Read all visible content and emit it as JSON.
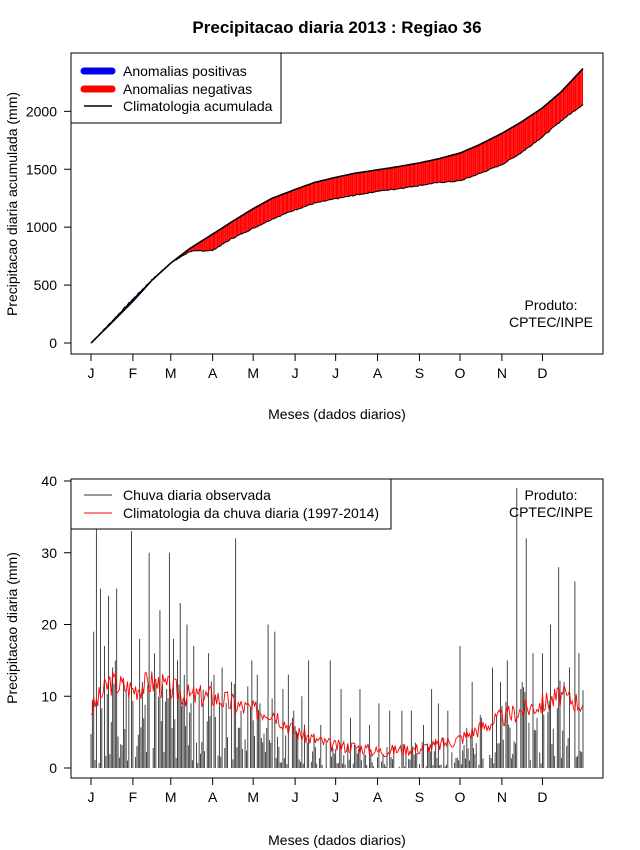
{
  "title": "Precipitacao diaria 2013 : Regiao 36",
  "credit_line1": "Produto:",
  "credit_line2": "CPTEC/INPE",
  "month_ticks": [
    "J",
    "F",
    "M",
    "A",
    "M",
    "J",
    "J",
    "A",
    "S",
    "O",
    "N",
    "D"
  ],
  "chart_data": [
    {
      "type": "area",
      "title": "Precipitacao diaria 2013 : Regiao 36",
      "xlabel": "Meses (dados diarios)",
      "ylabel": "Precipitacao diaria acumulada (mm)",
      "xlim": [
        1,
        365
      ],
      "ylim": [
        0,
        2400
      ],
      "yticks": [
        0,
        500,
        1000,
        1500,
        2000
      ],
      "legend_position": "top-left",
      "legend": [
        "Anomalias positivas",
        "Anomalias negativas",
        "Climatologia acumulada"
      ],
      "colors": {
        "positive": "#0000ee",
        "negative": "#ff0000",
        "climatology": "#000000"
      },
      "climatology_cumulative": {
        "day": [
          1,
          15,
          32,
          46,
          60,
          74,
          91,
          105,
          121,
          135,
          152,
          166,
          182,
          196,
          213,
          227,
          244,
          258,
          274,
          288,
          305,
          319,
          335,
          349,
          365
        ],
        "mm": [
          0,
          160,
          360,
          540,
          690,
          815,
          940,
          1045,
          1160,
          1250,
          1325,
          1385,
          1430,
          1465,
          1495,
          1520,
          1555,
          1590,
          1640,
          1710,
          1810,
          1905,
          2030,
          2170,
          2370
        ]
      },
      "observed_cumulative": {
        "day": [
          1,
          15,
          32,
          46,
          60,
          74,
          91,
          105,
          121,
          135,
          152,
          166,
          182,
          196,
          213,
          227,
          244,
          258,
          274,
          288,
          305,
          319,
          335,
          349,
          365
        ],
        "mm": [
          0,
          170,
          380,
          545,
          690,
          790,
          800,
          900,
          990,
          1070,
          1150,
          1205,
          1245,
          1275,
          1310,
          1330,
          1360,
          1385,
          1400,
          1460,
          1540,
          1640,
          1780,
          1920,
          2060
        ]
      }
    },
    {
      "type": "bar",
      "xlabel": "Meses (dados diarios)",
      "ylabel": "Precipitacao diaria (mm)",
      "xlim": [
        1,
        365
      ],
      "ylim": [
        0,
        40
      ],
      "yticks": [
        0,
        10,
        20,
        30,
        40
      ],
      "legend_position": "top-left",
      "legend": [
        "Chuva diaria observada",
        "Climatologia da chuva diaria (1997-2014)"
      ],
      "colors": {
        "observed": "#333333",
        "climatology": "#ff0000"
      },
      "observed_daily_peaks": {
        "day": [
          3,
          5,
          8,
          11,
          14,
          17,
          20,
          25,
          27,
          31,
          37,
          39,
          44,
          48,
          52,
          57,
          59,
          60,
          62,
          65,
          67,
          70,
          72,
          75,
          77,
          81,
          88,
          92,
          98,
          105,
          108,
          112,
          120,
          124,
          126,
          132,
          137,
          143,
          147,
          151,
          157,
          162,
          171,
          178,
          186,
          193,
          200,
          207,
          214,
          222,
          231,
          238,
          247,
          253,
          258,
          265,
          274,
          283,
          290,
          298,
          304,
          309,
          316,
          320,
          323,
          328,
          335,
          341,
          347,
          351,
          355,
          359,
          362
        ],
        "mm": [
          19,
          35,
          25,
          17,
          24,
          14,
          25,
          12,
          11,
          33,
          18,
          12,
          30,
          16,
          22,
          11,
          30,
          11,
          18,
          15,
          23,
          13,
          20,
          9,
          17,
          11,
          16,
          13,
          14,
          12,
          32,
          8,
          15,
          13,
          9,
          20,
          19,
          11,
          13,
          8,
          10,
          15,
          6,
          15,
          11,
          7,
          11,
          6,
          9,
          8,
          8,
          8,
          6,
          11,
          9,
          8,
          17,
          12,
          7,
          14,
          12,
          15,
          39,
          12,
          32,
          16,
          16,
          20,
          28,
          12,
          14,
          26,
          16
        ]
      },
      "climatology_daily": {
        "day": [
          1,
          15,
          32,
          46,
          60,
          74,
          91,
          105,
          121,
          135,
          152,
          166,
          182,
          196,
          213,
          227,
          244,
          258,
          274,
          288,
          305,
          319,
          335,
          349,
          365
        ],
        "mm": [
          8,
          12,
          11,
          12,
          11,
          10,
          10,
          9,
          8,
          8,
          5,
          4,
          3,
          3,
          2.3,
          2.5,
          2.7,
          3.2,
          4.1,
          5.5,
          7,
          8,
          9,
          10,
          9
        ]
      }
    }
  ]
}
